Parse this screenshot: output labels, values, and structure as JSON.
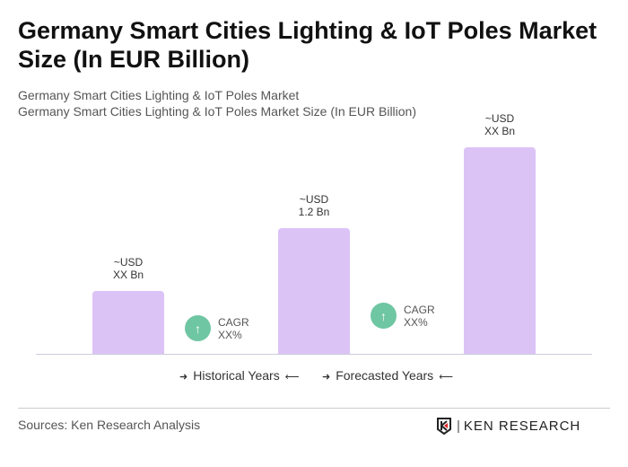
{
  "title": "Germany Smart Cities Lighting & IoT Poles Market Size (In EUR Billion)",
  "subtitle1": "Germany Smart Cities Lighting & IoT Poles Market",
  "subtitle2": "Germany Smart Cities Lighting & IoT Poles Market Size (In EUR Billion)",
  "chart_data": {
    "type": "bar",
    "bars": [
      {
        "label1": "~USD",
        "label2": "XX Bn"
      },
      {
        "label1": "~USD",
        "label2": "1.2 Bn"
      },
      {
        "label1": "~USD",
        "label2": "XX Bn"
      }
    ],
    "cagr": [
      {
        "label": "CAGR",
        "value": "XX%"
      },
      {
        "label": "CAGR",
        "value": "XX%"
      }
    ],
    "bar_color": "#dcc3f6",
    "cagr_color": "#6fc6a3"
  },
  "legend": {
    "historical": "Historical Years",
    "forecasted": "Forecasted Years"
  },
  "source": "Sources: Ken Research Analysis",
  "logo": "KEN RESEARCH"
}
